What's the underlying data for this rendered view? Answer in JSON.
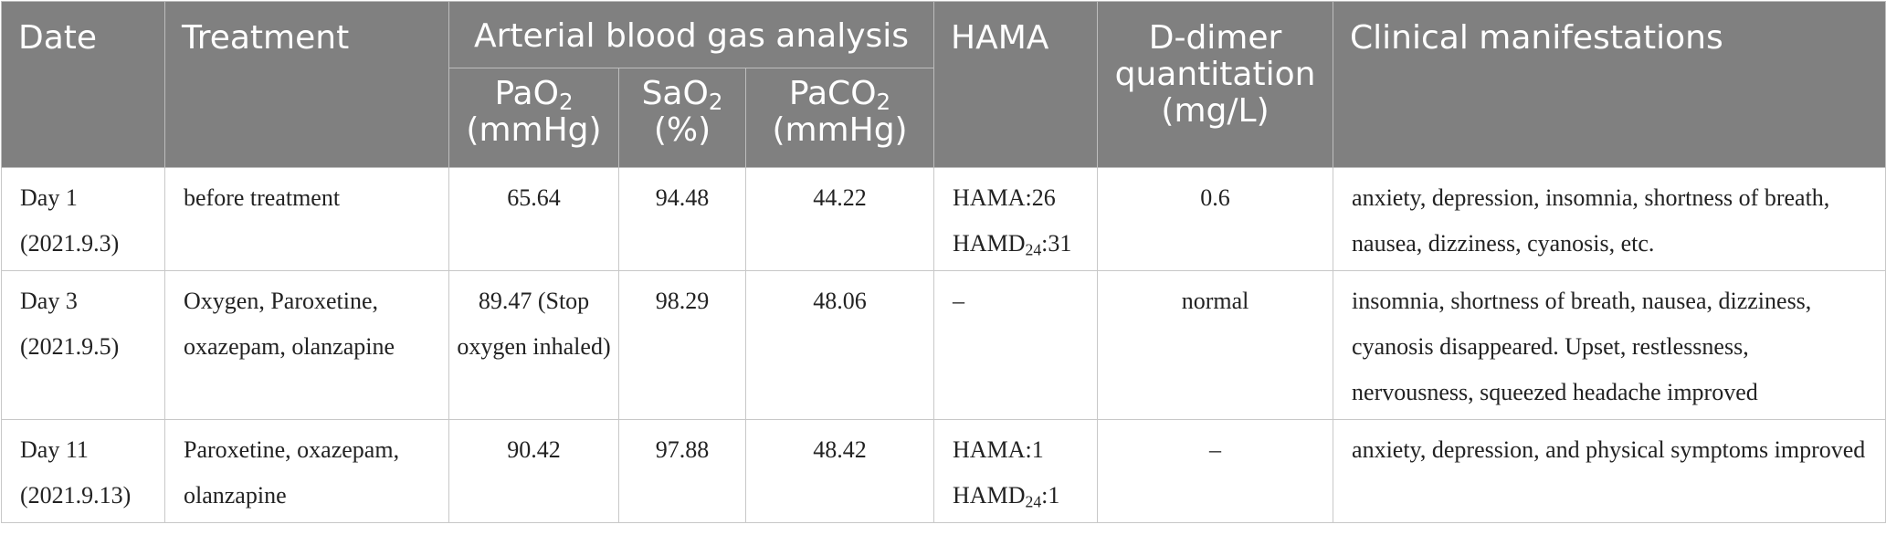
{
  "header": {
    "date": "Date",
    "treatment": "Treatment",
    "abg_group": "Arterial blood gas analysis",
    "pao2": {
      "base": "PaO",
      "sub": "2",
      "unit": "(mmHg)"
    },
    "sao2": {
      "base": "SaO",
      "sub": "2",
      "unit": "(%)"
    },
    "paco2": {
      "base": "PaCO",
      "sub": "2",
      "unit": "(mmHg)"
    },
    "hama": "HAMA",
    "ddimer": {
      "line1": "D-dimer",
      "line2": "quantitation",
      "line3": "(mg/L)"
    },
    "clinical": "Clinical manifestations"
  },
  "rows": [
    {
      "day": "Day 1",
      "date": "(2021.9.3)",
      "treatment": "before treatment",
      "pao2": "65.64",
      "sao2": "94.48",
      "paco2": "44.22",
      "hama": {
        "a": "HAMA:26",
        "d_prefix": "HAMD",
        "d_sub": "24",
        "d_val": ":31"
      },
      "ddimer": "0.6",
      "clinical": "anxiety, depression, insomnia, shortness of breath, nausea, dizziness, cyanosis, etc."
    },
    {
      "day": "Day 3",
      "date": "(2021.9.5)",
      "treatment": "Oxygen, Paroxetine, oxazepam, olanzapine",
      "pao2": "89.47 (Stop oxygen inhaled)",
      "sao2": "98.29",
      "paco2": "48.06",
      "hama_text": "–",
      "ddimer": "normal",
      "clinical": "insomnia, shortness of breath, nausea, dizziness, cyanosis disappeared. Upset, restlessness, nervousness, squeezed headache improved"
    },
    {
      "day": "Day 11",
      "date": "(2021.9.13)",
      "treatment": "Paroxetine, oxazepam, olanzapine",
      "pao2": "90.42",
      "sao2": "97.88",
      "paco2": "48.42",
      "hama": {
        "a": "HAMA:1",
        "d_prefix": "HAMD",
        "d_sub": "24",
        "d_val": ":1"
      },
      "ddimer": "–",
      "clinical": "anxiety, depression, and physical symptoms improved"
    }
  ]
}
